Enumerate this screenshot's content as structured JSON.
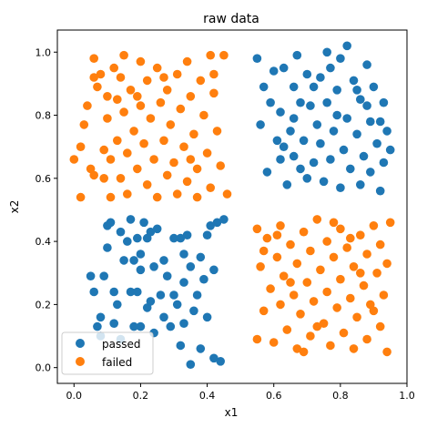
{
  "chart_data": {
    "type": "scatter",
    "title": "raw data",
    "xlabel": "x1",
    "ylabel": "x2",
    "xlim": [
      -0.05,
      1.0
    ],
    "ylim": [
      -0.05,
      1.07
    ],
    "xticks": [
      "0.0",
      "0.2",
      "0.4",
      "0.6",
      "0.8",
      "1.0"
    ],
    "yticks": [
      "0.0",
      "0.2",
      "0.4",
      "0.6",
      "0.8",
      "1.0"
    ],
    "xtick_values": [
      0.0,
      0.2,
      0.4,
      0.6,
      0.8,
      1.0
    ],
    "ytick_values": [
      0.0,
      0.2,
      0.4,
      0.6,
      0.8,
      1.0
    ],
    "grid": false,
    "legend": "lower-left",
    "series": [
      {
        "name": "passed",
        "color": "#1f77b4",
        "points": [
          [
            0.05,
            0.29
          ],
          [
            0.06,
            0.24
          ],
          [
            0.07,
            0.13
          ],
          [
            0.08,
            0.16
          ],
          [
            0.09,
            0.29
          ],
          [
            0.1,
            0.38
          ],
          [
            0.1,
            0.45
          ],
          [
            0.11,
            0.46
          ],
          [
            0.12,
            0.24
          ],
          [
            0.13,
            0.2
          ],
          [
            0.14,
            0.43
          ],
          [
            0.14,
            0.09
          ],
          [
            0.15,
            0.34
          ],
          [
            0.16,
            0.4
          ],
          [
            0.17,
            0.47
          ],
          [
            0.17,
            0.24
          ],
          [
            0.18,
            0.34
          ],
          [
            0.19,
            0.24
          ],
          [
            0.19,
            0.41
          ],
          [
            0.2,
            0.36
          ],
          [
            0.2,
            0.13
          ],
          [
            0.21,
            0.46
          ],
          [
            0.22,
            0.41
          ],
          [
            0.22,
            0.19
          ],
          [
            0.23,
            0.21
          ],
          [
            0.24,
            0.32
          ],
          [
            0.24,
            0.11
          ],
          [
            0.25,
            0.44
          ],
          [
            0.26,
            0.23
          ],
          [
            0.27,
            0.34
          ],
          [
            0.27,
            0.16
          ],
          [
            0.28,
            0.29
          ],
          [
            0.29,
            0.13
          ],
          [
            0.3,
            0.41
          ],
          [
            0.3,
            0.23
          ],
          [
            0.31,
            0.2
          ],
          [
            0.32,
            0.07
          ],
          [
            0.33,
            0.36
          ],
          [
            0.33,
            0.27
          ],
          [
            0.34,
            0.42
          ],
          [
            0.35,
            0.32
          ],
          [
            0.35,
            0.01
          ],
          [
            0.36,
            0.18
          ],
          [
            0.37,
            0.23
          ],
          [
            0.38,
            0.35
          ],
          [
            0.38,
            0.06
          ],
          [
            0.39,
            0.28
          ],
          [
            0.4,
            0.42
          ],
          [
            0.4,
            0.16
          ],
          [
            0.41,
            0.45
          ],
          [
            0.42,
            0.31
          ],
          [
            0.42,
            0.03
          ],
          [
            0.43,
            0.46
          ],
          [
            0.44,
            0.02
          ],
          [
            0.45,
            0.47
          ],
          [
            0.23,
            0.43
          ],
          [
            0.32,
            0.41
          ],
          [
            0.2,
            0.31
          ],
          [
            0.12,
            0.14
          ],
          [
            0.08,
            0.1
          ],
          [
            0.33,
            0.14
          ],
          [
            0.18,
            0.13
          ],
          [
            0.55,
            0.98
          ],
          [
            0.56,
            0.77
          ],
          [
            0.57,
            0.89
          ],
          [
            0.58,
            0.62
          ],
          [
            0.59,
            0.84
          ],
          [
            0.6,
            0.94
          ],
          [
            0.61,
            0.72
          ],
          [
            0.62,
            0.66
          ],
          [
            0.62,
            0.81
          ],
          [
            0.63,
            0.95
          ],
          [
            0.64,
            0.58
          ],
          [
            0.65,
            0.75
          ],
          [
            0.66,
            0.89
          ],
          [
            0.66,
            0.67
          ],
          [
            0.67,
            0.99
          ],
          [
            0.68,
            0.84
          ],
          [
            0.69,
            0.72
          ],
          [
            0.7,
            0.6
          ],
          [
            0.7,
            0.93
          ],
          [
            0.71,
            0.83
          ],
          [
            0.72,
            0.65
          ],
          [
            0.73,
            0.77
          ],
          [
            0.74,
            0.92
          ],
          [
            0.74,
            0.71
          ],
          [
            0.75,
            0.59
          ],
          [
            0.76,
            0.84
          ],
          [
            0.77,
            0.95
          ],
          [
            0.77,
            0.66
          ],
          [
            0.78,
            0.75
          ],
          [
            0.79,
            0.88
          ],
          [
            0.8,
            0.57
          ],
          [
            0.8,
            0.98
          ],
          [
            0.81,
            0.69
          ],
          [
            0.82,
            0.79
          ],
          [
            0.82,
            1.02
          ],
          [
            0.83,
            0.63
          ],
          [
            0.84,
            0.91
          ],
          [
            0.85,
            0.74
          ],
          [
            0.86,
            0.58
          ],
          [
            0.86,
            0.85
          ],
          [
            0.87,
            0.67
          ],
          [
            0.88,
            0.96
          ],
          [
            0.89,
            0.78
          ],
          [
            0.89,
            0.62
          ],
          [
            0.9,
            0.89
          ],
          [
            0.91,
            0.71
          ],
          [
            0.92,
            0.56
          ],
          [
            0.93,
            0.84
          ],
          [
            0.93,
            0.65
          ],
          [
            0.94,
            0.75
          ],
          [
            0.95,
            0.69
          ],
          [
            0.72,
            0.89
          ],
          [
            0.79,
            0.8
          ],
          [
            0.85,
            0.88
          ],
          [
            0.68,
            0.63
          ],
          [
            0.63,
            0.7
          ],
          [
            0.76,
            1.0
          ],
          [
            0.88,
            0.83
          ],
          [
            0.92,
            0.78
          ],
          [
            0.66,
            0.79
          ]
        ]
      },
      {
        "name": "failed",
        "color": "#ff7f0e",
        "points": [
          [
            0.0,
            0.66
          ],
          [
            0.02,
            0.54
          ],
          [
            0.02,
            0.7
          ],
          [
            0.03,
            0.77
          ],
          [
            0.04,
            0.83
          ],
          [
            0.05,
            0.63
          ],
          [
            0.06,
            0.61
          ],
          [
            0.06,
            0.98
          ],
          [
            0.06,
            0.92
          ],
          [
            0.07,
            0.89
          ],
          [
            0.08,
            0.93
          ],
          [
            0.09,
            0.69
          ],
          [
            0.1,
            0.86
          ],
          [
            0.1,
            0.79
          ],
          [
            0.11,
            0.66
          ],
          [
            0.11,
            0.54
          ],
          [
            0.12,
            0.95
          ],
          [
            0.13,
            0.85
          ],
          [
            0.13,
            0.72
          ],
          [
            0.14,
            0.6
          ],
          [
            0.14,
            0.92
          ],
          [
            0.15,
            0.81
          ],
          [
            0.16,
            0.68
          ],
          [
            0.16,
            0.55
          ],
          [
            0.17,
            0.88
          ],
          [
            0.18,
            0.75
          ],
          [
            0.19,
            0.63
          ],
          [
            0.2,
            0.97
          ],
          [
            0.2,
            0.83
          ],
          [
            0.21,
            0.71
          ],
          [
            0.22,
            0.58
          ],
          [
            0.22,
            0.91
          ],
          [
            0.23,
            0.79
          ],
          [
            0.24,
            0.66
          ],
          [
            0.25,
            0.54
          ],
          [
            0.25,
            0.95
          ],
          [
            0.26,
            0.84
          ],
          [
            0.27,
            0.72
          ],
          [
            0.28,
            0.61
          ],
          [
            0.28,
            0.88
          ],
          [
            0.29,
            0.77
          ],
          [
            0.3,
            0.65
          ],
          [
            0.31,
            0.55
          ],
          [
            0.31,
            0.93
          ],
          [
            0.32,
            0.82
          ],
          [
            0.33,
            0.7
          ],
          [
            0.34,
            0.59
          ],
          [
            0.34,
            0.97
          ],
          [
            0.35,
            0.86
          ],
          [
            0.36,
            0.74
          ],
          [
            0.37,
            0.63
          ],
          [
            0.37,
            0.54
          ],
          [
            0.38,
            0.91
          ],
          [
            0.39,
            0.8
          ],
          [
            0.4,
            0.68
          ],
          [
            0.41,
            0.57
          ],
          [
            0.41,
            0.99
          ],
          [
            0.42,
            0.87
          ],
          [
            0.43,
            0.75
          ],
          [
            0.44,
            0.64
          ],
          [
            0.45,
            0.99
          ],
          [
            0.46,
            0.55
          ],
          [
            0.19,
            0.86
          ],
          [
            0.27,
            0.92
          ],
          [
            0.09,
            0.6
          ],
          [
            0.35,
            0.66
          ],
          [
            0.15,
            0.99
          ],
          [
            0.42,
            0.93
          ],
          [
            0.55,
            0.44
          ],
          [
            0.55,
            0.09
          ],
          [
            0.56,
            0.32
          ],
          [
            0.57,
            0.18
          ],
          [
            0.58,
            0.41
          ],
          [
            0.59,
            0.25
          ],
          [
            0.6,
            0.08
          ],
          [
            0.61,
            0.35
          ],
          [
            0.62,
            0.2
          ],
          [
            0.62,
            0.45
          ],
          [
            0.63,
            0.29
          ],
          [
            0.64,
            0.12
          ],
          [
            0.65,
            0.39
          ],
          [
            0.66,
            0.23
          ],
          [
            0.67,
            0.06
          ],
          [
            0.67,
            0.33
          ],
          [
            0.68,
            0.17
          ],
          [
            0.69,
            0.43
          ],
          [
            0.7,
            0.27
          ],
          [
            0.71,
            0.1
          ],
          [
            0.71,
            0.37
          ],
          [
            0.72,
            0.21
          ],
          [
            0.73,
            0.47
          ],
          [
            0.74,
            0.31
          ],
          [
            0.75,
            0.14
          ],
          [
            0.76,
            0.4
          ],
          [
            0.76,
            0.24
          ],
          [
            0.77,
            0.07
          ],
          [
            0.78,
            0.35
          ],
          [
            0.79,
            0.19
          ],
          [
            0.8,
            0.44
          ],
          [
            0.8,
            0.28
          ],
          [
            0.81,
            0.11
          ],
          [
            0.82,
            0.38
          ],
          [
            0.83,
            0.22
          ],
          [
            0.84,
            0.06
          ],
          [
            0.84,
            0.32
          ],
          [
            0.85,
            0.16
          ],
          [
            0.86,
            0.42
          ],
          [
            0.87,
            0.26
          ],
          [
            0.88,
            0.09
          ],
          [
            0.88,
            0.36
          ],
          [
            0.89,
            0.2
          ],
          [
            0.9,
            0.45
          ],
          [
            0.91,
            0.3
          ],
          [
            0.92,
            0.13
          ],
          [
            0.92,
            0.39
          ],
          [
            0.93,
            0.23
          ],
          [
            0.94,
            0.05
          ],
          [
            0.95,
            0.46
          ],
          [
            0.61,
            0.42
          ],
          [
            0.73,
            0.13
          ],
          [
            0.86,
            0.3
          ],
          [
            0.65,
            0.27
          ],
          [
            0.78,
            0.46
          ],
          [
            0.9,
            0.18
          ],
          [
            0.57,
            0.37
          ],
          [
            0.69,
            0.05
          ],
          [
            0.83,
            0.41
          ],
          [
            0.94,
            0.33
          ]
        ]
      }
    ]
  }
}
